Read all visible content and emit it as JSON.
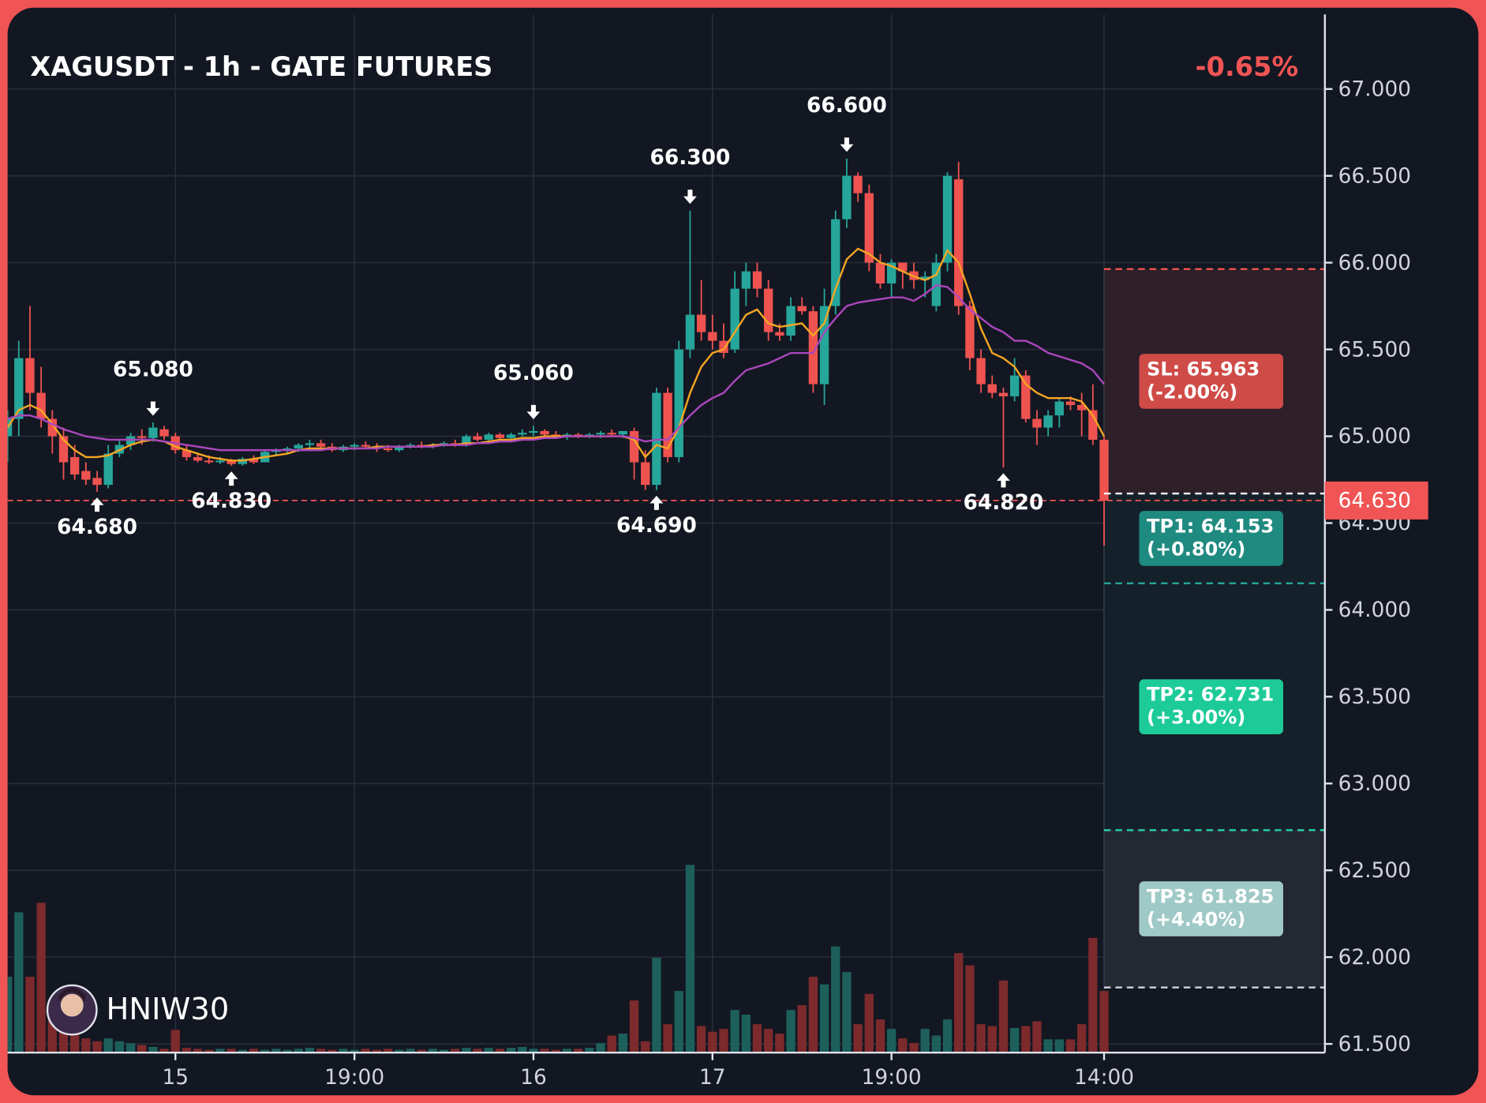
{
  "chart_data": {
    "type": "candlestick",
    "title": "XAGUSDT - 1h - GATE FUTURES",
    "change": "-0.65%",
    "change_color": "#f05454",
    "watermark": "HNIW30",
    "up_color": "#26a69a",
    "down_color": "#ef5350",
    "volume_up_color": "#1d5f5b",
    "volume_down_color": "#7c2a2c",
    "grid": true,
    "categories": [
      null,
      null,
      null,
      null,
      null,
      null,
      null,
      null,
      null,
      null,
      null,
      null,
      null,
      null,
      null,
      "15",
      null,
      null,
      null,
      null,
      null,
      null,
      null,
      null,
      null,
      null,
      null,
      null,
      null,
      null,
      null,
      "19:00",
      null,
      null,
      null,
      null,
      null,
      null,
      null,
      null,
      null,
      null,
      null,
      null,
      null,
      null,
      null,
      "16",
      null,
      null,
      null,
      null,
      null,
      null,
      null,
      null,
      null,
      null,
      null,
      null,
      null,
      null,
      null,
      "17",
      null,
      null,
      null,
      null,
      null,
      null,
      null,
      null,
      null,
      null,
      null,
      null,
      null,
      null,
      null,
      "19:00",
      null,
      null,
      null,
      null,
      null,
      null,
      null,
      null,
      null,
      null,
      null,
      null,
      null,
      null,
      null,
      null,
      null,
      null,
      "14:00"
    ],
    "open": [
      65.0,
      65.1,
      65.45,
      65.25,
      65.1,
      65.0,
      64.88,
      64.8,
      64.76,
      64.72,
      64.9,
      64.95,
      65.0,
      64.99,
      65.04,
      65.0,
      64.92,
      64.88,
      64.86,
      64.85,
      64.86,
      64.84,
      64.87,
      64.85,
      64.91,
      64.92,
      64.93,
      64.95,
      64.96,
      64.94,
      64.92,
      64.94,
      64.95,
      64.94,
      64.93,
      64.92,
      64.94,
      64.95,
      64.94,
      64.95,
      64.96,
      64.95,
      65.0,
      64.98,
      65.01,
      64.99,
      65.01,
      65.02,
      65.03,
      65.01,
      65.0,
      65.01,
      65.0,
      65.01,
      65.02,
      65.01,
      65.03,
      64.85,
      64.72,
      65.25,
      64.88,
      65.5,
      65.7,
      65.6,
      65.55,
      65.5,
      65.85,
      65.95,
      65.85,
      65.6,
      65.58,
      65.75,
      65.72,
      65.3,
      65.75,
      66.25,
      66.5,
      66.4,
      66.0,
      65.88,
      66.0,
      65.95,
      65.9,
      65.75,
      66.0,
      66.48,
      65.75,
      65.45,
      65.3,
      65.25,
      65.23,
      65.35,
      65.1,
      65.05,
      65.12,
      65.2,
      65.18,
      65.15,
      64.98
    ],
    "high": [
      65.15,
      65.55,
      65.75,
      65.4,
      65.15,
      65.05,
      64.95,
      64.85,
      64.8,
      64.95,
      64.98,
      65.02,
      65.04,
      65.08,
      65.06,
      65.02,
      64.95,
      64.9,
      64.89,
      64.88,
      64.87,
      64.88,
      64.89,
      64.92,
      64.93,
      64.94,
      64.96,
      64.98,
      64.98,
      64.96,
      64.95,
      64.96,
      64.97,
      64.96,
      64.95,
      64.95,
      64.96,
      64.97,
      64.96,
      64.97,
      64.98,
      65.01,
      65.02,
      65.02,
      65.02,
      65.02,
      65.04,
      65.06,
      65.04,
      65.03,
      65.02,
      65.02,
      65.02,
      65.03,
      65.04,
      65.03,
      65.05,
      64.92,
      65.28,
      65.28,
      65.55,
      66.3,
      65.9,
      65.7,
      65.65,
      65.95,
      66.0,
      66.0,
      65.9,
      65.65,
      65.8,
      65.8,
      65.75,
      65.85,
      66.3,
      66.6,
      66.52,
      66.45,
      66.05,
      66.02,
      66.0,
      66.0,
      65.95,
      66.05,
      66.52,
      66.58,
      65.78,
      65.5,
      65.35,
      65.28,
      65.45,
      65.38,
      65.15,
      65.15,
      65.22,
      65.23,
      65.25,
      65.3,
      65.0
    ],
    "low": [
      64.85,
      65.0,
      65.15,
      65.05,
      64.9,
      64.75,
      64.75,
      64.72,
      64.68,
      64.7,
      64.88,
      64.92,
      64.95,
      64.97,
      64.98,
      64.9,
      64.86,
      64.85,
      64.84,
      64.84,
      64.83,
      64.83,
      64.84,
      64.85,
      64.89,
      64.9,
      64.91,
      64.93,
      64.93,
      64.91,
      64.91,
      64.92,
      64.93,
      64.91,
      64.91,
      64.91,
      64.93,
      64.93,
      64.93,
      64.94,
      64.94,
      64.94,
      64.97,
      64.97,
      64.98,
      64.98,
      65.0,
      65.0,
      65.0,
      64.99,
      64.98,
      64.99,
      64.99,
      64.99,
      65.0,
      64.99,
      64.75,
      64.69,
      64.69,
      64.85,
      64.85,
      65.45,
      65.55,
      65.5,
      65.45,
      65.48,
      65.75,
      65.8,
      65.55,
      65.55,
      65.55,
      65.7,
      65.25,
      65.18,
      65.7,
      66.2,
      66.35,
      65.95,
      65.85,
      65.8,
      65.85,
      65.85,
      65.8,
      65.72,
      65.95,
      65.7,
      65.38,
      65.25,
      65.22,
      64.82,
      65.2,
      65.08,
      64.95,
      65.0,
      65.05,
      65.15,
      65.0,
      64.95,
      64.37
    ],
    "close": [
      65.1,
      65.45,
      65.25,
      65.1,
      65.0,
      64.85,
      64.78,
      64.75,
      64.72,
      64.9,
      64.95,
      65.0,
      64.99,
      65.05,
      65.0,
      64.92,
      64.88,
      64.86,
      64.85,
      64.86,
      64.84,
      64.87,
      64.85,
      64.91,
      64.92,
      64.93,
      64.95,
      64.96,
      64.94,
      64.92,
      64.94,
      64.95,
      64.94,
      64.93,
      64.92,
      64.94,
      64.95,
      64.94,
      64.95,
      64.96,
      64.95,
      65.0,
      64.98,
      65.01,
      64.99,
      65.01,
      65.02,
      65.03,
      65.01,
      65.0,
      65.01,
      65.0,
      65.01,
      65.02,
      65.01,
      65.03,
      64.85,
      64.72,
      65.25,
      64.88,
      65.5,
      65.7,
      65.6,
      65.55,
      65.48,
      65.85,
      65.95,
      65.85,
      65.6,
      65.58,
      65.75,
      65.72,
      65.3,
      65.75,
      66.25,
      66.5,
      66.4,
      66.0,
      65.88,
      66.0,
      65.95,
      65.9,
      65.92,
      66.0,
      66.5,
      65.75,
      65.45,
      65.3,
      65.25,
      65.23,
      65.35,
      65.1,
      65.05,
      65.12,
      65.2,
      65.18,
      65.15,
      64.98,
      64.63
    ],
    "volume": [
      80,
      148,
      80,
      158,
      40,
      25,
      20,
      15,
      12,
      15,
      12,
      10,
      8,
      6,
      4,
      24,
      5,
      4,
      3,
      4,
      4,
      3,
      4,
      3,
      4,
      3,
      4,
      5,
      4,
      3,
      4,
      3,
      4,
      3,
      4,
      3,
      4,
      3,
      4,
      3,
      4,
      5,
      4,
      5,
      4,
      5,
      6,
      4,
      4,
      3,
      4,
      4,
      5,
      10,
      18,
      20,
      55,
      12,
      100,
      30,
      65,
      198,
      28,
      22,
      25,
      45,
      40,
      30,
      25,
      20,
      45,
      50,
      80,
      72,
      112,
      85,
      30,
      62,
      35,
      25,
      15,
      10,
      25,
      18,
      35,
      105,
      92,
      30,
      28,
      76,
      26,
      28,
      33,
      14,
      14,
      14,
      30,
      121,
      65
    ],
    "overlays": [
      {
        "color": "#f5a623",
        "values": [
          65.05,
          65.15,
          65.18,
          65.15,
          65.07,
          64.98,
          64.92,
          64.88,
          64.88,
          64.89,
          64.92,
          64.95,
          64.97,
          64.98,
          64.97,
          64.94,
          64.92,
          64.9,
          64.88,
          64.87,
          64.86,
          64.86,
          64.87,
          64.88,
          64.89,
          64.9,
          64.92,
          64.93,
          64.93,
          64.93,
          64.93,
          64.93,
          64.93,
          64.94,
          64.94,
          64.94,
          64.94,
          64.94,
          64.95,
          64.95,
          64.95,
          64.96,
          64.96,
          64.97,
          64.98,
          64.98,
          64.99,
          64.99,
          65.0,
          65.0,
          65.0,
          65.0,
          65.0,
          65.0,
          65.0,
          65.0,
          64.98,
          64.88,
          64.95,
          64.93,
          65.05,
          65.25,
          65.4,
          65.48,
          65.5,
          65.6,
          65.7,
          65.73,
          65.65,
          65.63,
          65.64,
          65.65,
          65.58,
          65.65,
          65.85,
          66.02,
          66.08,
          66.05,
          66.0,
          65.98,
          65.95,
          65.92,
          65.9,
          65.93,
          66.07,
          66.0,
          65.82,
          65.62,
          65.48,
          65.45,
          65.4,
          65.3,
          65.25,
          65.22,
          65.22,
          65.22,
          65.2,
          65.12,
          65.0
        ]
      },
      {
        "color": "#ab47bc",
        "values": [
          65.1,
          65.12,
          65.12,
          65.1,
          65.07,
          65.04,
          65.02,
          65.0,
          64.99,
          64.98,
          64.98,
          64.98,
          64.98,
          64.98,
          64.97,
          64.96,
          64.95,
          64.94,
          64.93,
          64.92,
          64.92,
          64.92,
          64.92,
          64.92,
          64.92,
          64.92,
          64.92,
          64.92,
          64.92,
          64.93,
          64.93,
          64.93,
          64.93,
          64.93,
          64.94,
          64.94,
          64.94,
          64.94,
          64.94,
          64.95,
          64.95,
          64.95,
          64.96,
          64.96,
          64.97,
          64.97,
          64.98,
          64.98,
          64.99,
          64.99,
          65.0,
          65.0,
          65.0,
          65.0,
          65.0,
          65.0,
          64.99,
          64.97,
          64.98,
          64.98,
          65.05,
          65.12,
          65.18,
          65.22,
          65.25,
          65.32,
          65.38,
          65.4,
          65.42,
          65.45,
          65.48,
          65.48,
          65.48,
          65.6,
          65.68,
          65.75,
          65.77,
          65.78,
          65.79,
          65.8,
          65.8,
          65.78,
          65.82,
          65.87,
          65.86,
          65.8,
          65.73,
          65.68,
          65.63,
          65.6,
          65.55,
          65.55,
          65.52,
          65.48,
          65.46,
          65.44,
          65.42,
          65.38,
          65.3
        ]
      }
    ],
    "annotations": [
      {
        "label": "64.680",
        "value": 64.68,
        "index": 8,
        "kind": "low"
      },
      {
        "label": "65.080",
        "value": 65.08,
        "index": 13,
        "kind": "high"
      },
      {
        "label": "64.830",
        "value": 64.83,
        "index": 20,
        "kind": "low"
      },
      {
        "label": "65.060",
        "value": 65.06,
        "index": 47,
        "kind": "high"
      },
      {
        "label": "64.690",
        "value": 64.69,
        "index": 58,
        "kind": "low"
      },
      {
        "label": "66.300",
        "value": 66.3,
        "index": 61,
        "kind": "high"
      },
      {
        "label": "66.600",
        "value": 66.6,
        "index": 75,
        "kind": "high"
      },
      {
        "label": "64.820",
        "value": 64.82,
        "index": 89,
        "kind": "low"
      }
    ],
    "entry": {
      "value": 64.67,
      "color": "#ffffff"
    },
    "last_price": {
      "value": 64.63,
      "label": "64.630",
      "color": "#f05454"
    },
    "levels": [
      {
        "label": "SL: 65.963",
        "note": "(-2.00%)",
        "value": 65.963,
        "line_color": "#ef5350",
        "box_color": "#cf4b47",
        "zone_color": "#2e1f28"
      },
      {
        "label": "TP1: 64.153",
        "note": "(+0.80%)",
        "value": 64.153,
        "line_color": "#26a69a",
        "box_color": "#1f8a80",
        "zone_color": "#15212a"
      },
      {
        "label": "TP2: 62.731",
        "note": "(+3.00%)",
        "value": 62.731,
        "line_color": "#2ad4a8",
        "box_color": "#1dcb98",
        "zone_color": "#15212a"
      },
      {
        "label": "TP3: 61.825",
        "note": "(+4.40%)",
        "value": 61.825,
        "line_color": "#d1d4dc",
        "box_color": "#9fc9c6",
        "zone_color": "#232831"
      }
    ],
    "ylim": [
      61.45,
      67.43
    ],
    "yticks": [
      {
        "value": 61.5,
        "label": "61.500"
      },
      {
        "value": 62,
        "label": "62.000"
      },
      {
        "value": 62.5,
        "label": "62.500"
      },
      {
        "value": 63,
        "label": "63.000"
      },
      {
        "value": 63.5,
        "label": "63.500"
      },
      {
        "value": 64,
        "label": "64.000"
      },
      {
        "value": 64.5,
        "label": "64.500"
      },
      {
        "value": 65,
        "label": "65.000"
      },
      {
        "value": 65.5,
        "label": "65.500"
      },
      {
        "value": 66,
        "label": "66.000"
      },
      {
        "value": 66.5,
        "label": "66.500"
      },
      {
        "value": 67,
        "label": "67.000"
      }
    ]
  }
}
